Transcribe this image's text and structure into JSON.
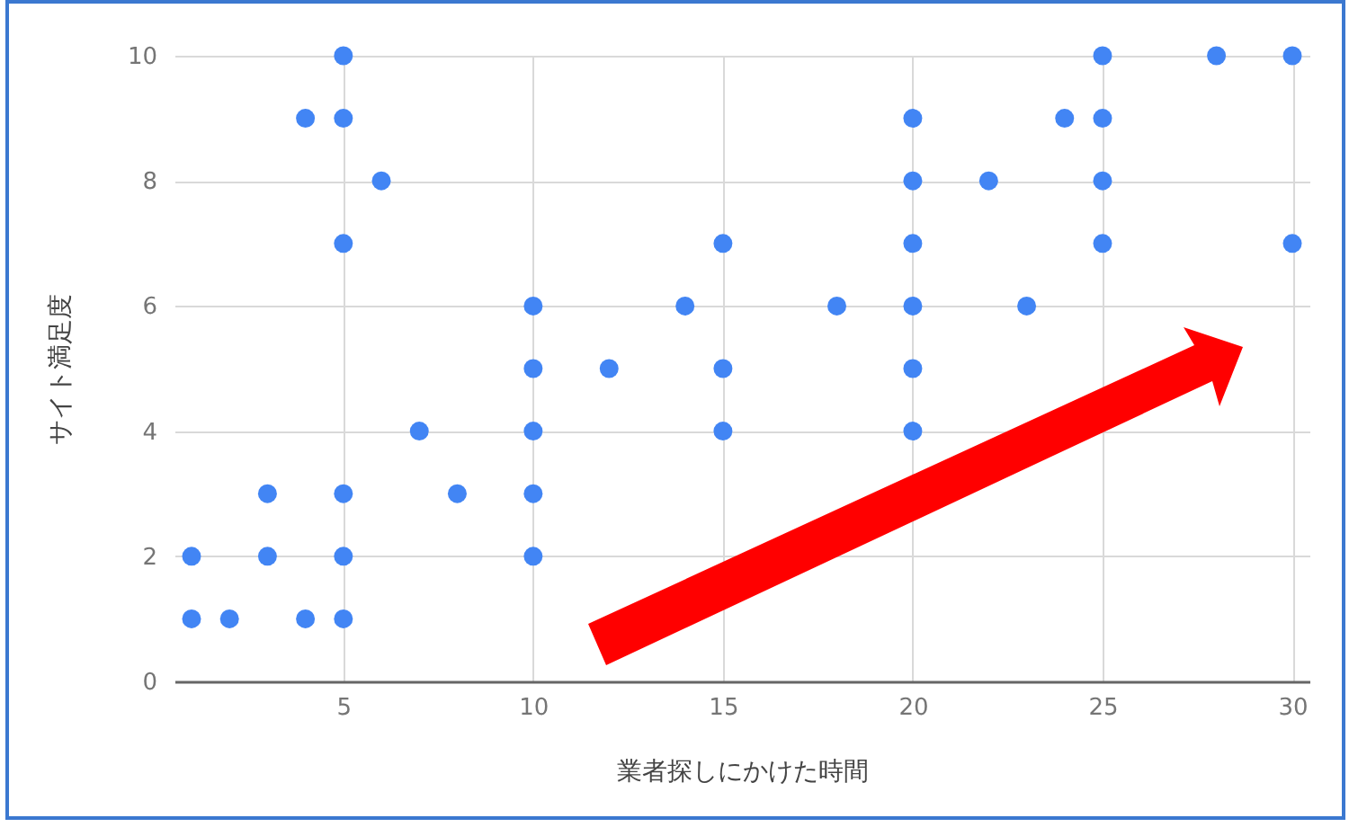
{
  "chart_data": {
    "type": "scatter",
    "xlabel": "業者探しにかけた時間",
    "ylabel": "サイト満足度",
    "xlim": [
      0.55,
      30.45
    ],
    "ylim": [
      0,
      10
    ],
    "xticks": [
      5,
      10,
      15,
      20,
      25,
      30
    ],
    "yticks": [
      0,
      2,
      4,
      6,
      8,
      10
    ],
    "grid": true,
    "marker": "circle",
    "series": [
      {
        "color": "#4285f4",
        "x": [
          1,
          1,
          2,
          3,
          3,
          4,
          4,
          5,
          5,
          5,
          5,
          5,
          5,
          6,
          7,
          8,
          10,
          10,
          10,
          10,
          10,
          12,
          14,
          15,
          15,
          15,
          18,
          20,
          20,
          20,
          20,
          20,
          20,
          22,
          23,
          24,
          25,
          25,
          25,
          25,
          28,
          30,
          30
        ],
        "values": [
          2,
          1,
          1,
          3,
          2,
          9,
          1,
          10,
          9,
          7,
          3,
          2,
          1,
          8,
          4,
          3,
          6,
          5,
          4,
          3,
          2,
          5,
          6,
          7,
          5,
          4,
          6,
          9,
          8,
          7,
          6,
          5,
          4,
          8,
          6,
          9,
          10,
          9,
          8,
          7,
          10,
          10,
          7
        ]
      }
    ]
  }
}
